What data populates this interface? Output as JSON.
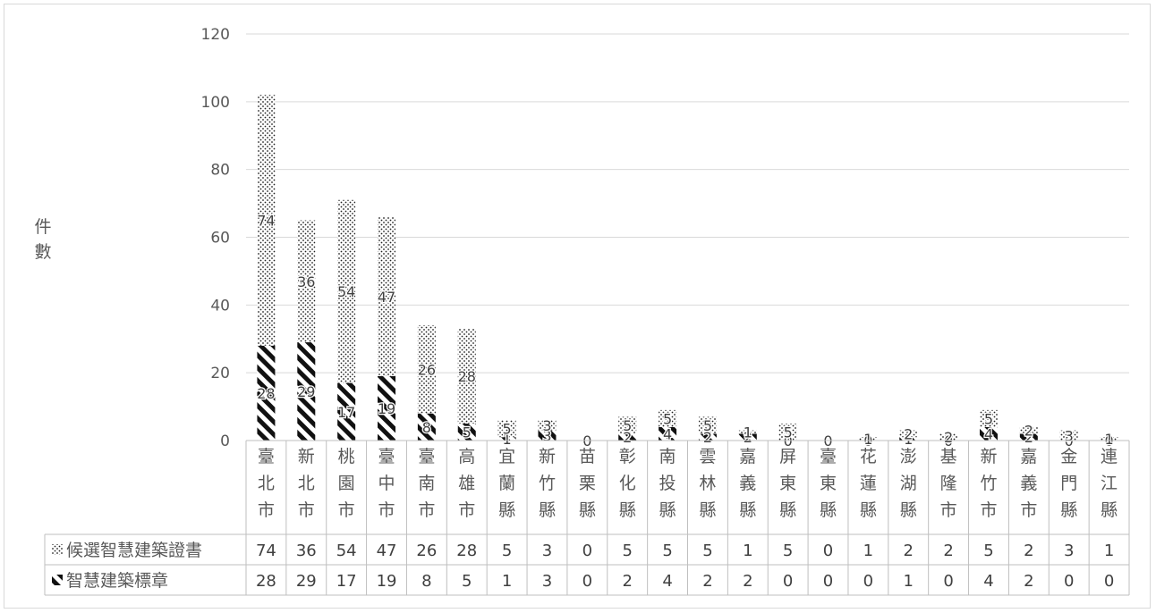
{
  "chart_data": {
    "type": "bar",
    "stacked": true,
    "title": "",
    "xlabel": "",
    "ylabel": "件數",
    "ylim": [
      0,
      120
    ],
    "yticks": [
      0,
      20,
      40,
      60,
      80,
      100,
      120
    ],
    "grid": true,
    "legend": "data-table",
    "categories": [
      "臺北市",
      "新北市",
      "桃園市",
      "臺中市",
      "臺南市",
      "高雄市",
      "宜蘭縣",
      "新竹縣",
      "苗栗縣",
      "彰化縣",
      "南投縣",
      "雲林縣",
      "嘉義縣",
      "屏東縣",
      "臺東縣",
      "花蓮縣",
      "澎湖縣",
      "基隆市",
      "新竹市",
      "嘉義市",
      "金門縣",
      "連江縣"
    ],
    "series": [
      {
        "name": "候選智慧建築證書",
        "pattern": "dots",
        "values": [
          74,
          36,
          54,
          47,
          26,
          28,
          5,
          3,
          0,
          5,
          5,
          5,
          1,
          5,
          0,
          1,
          2,
          2,
          5,
          2,
          3,
          1
        ]
      },
      {
        "name": "智慧建築標章",
        "pattern": "diagonal-stripes",
        "values": [
          28,
          29,
          17,
          19,
          8,
          5,
          1,
          3,
          0,
          2,
          4,
          2,
          2,
          0,
          0,
          0,
          1,
          0,
          4,
          2,
          0,
          0
        ]
      }
    ]
  }
}
